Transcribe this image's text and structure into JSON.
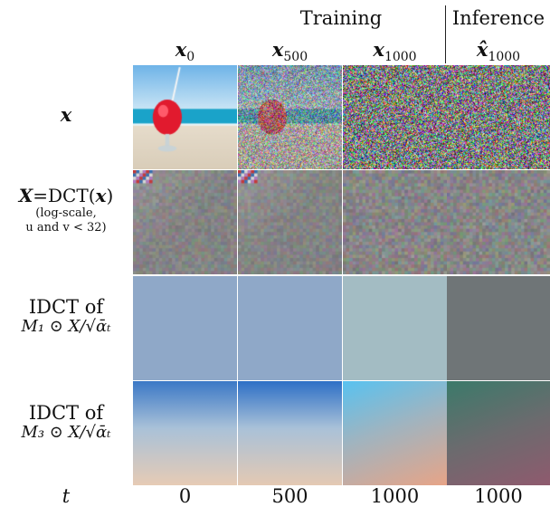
{
  "group_headers": {
    "training": "Training",
    "inference": "Inference"
  },
  "columns": [
    {
      "var": "x",
      "sub": "0",
      "hat": false
    },
    {
      "var": "x",
      "sub": "500",
      "hat": false
    },
    {
      "var": "x",
      "sub": "1000",
      "hat": false
    },
    {
      "var": "x̂",
      "sub": "1000",
      "hat": true
    }
  ],
  "rows": [
    {
      "label": "x",
      "note": ""
    },
    {
      "label": "X=DCT(x)",
      "note_line1": "(log-scale,",
      "note_line2": "u and v < 32)"
    },
    {
      "label_line1": "IDCT of",
      "label_line2": "M₁ ⊙ X/√ᾱₜ"
    },
    {
      "label_line1": "IDCT of",
      "label_line2": "M₃ ⊙ X/√ᾱₜ"
    }
  ],
  "t_axis": {
    "label": "t",
    "values": [
      "0",
      "500",
      "1000",
      "1000"
    ]
  },
  "colors": {
    "m1": [
      "#8fa8c8",
      "#8fa8c8",
      "#a3bcc3",
      "#6f7577"
    ],
    "m3_top": [
      "#3b78c6",
      "#2d6fc6",
      "#58c2f0",
      "#3b7a6a"
    ],
    "m3_bottom": [
      "#e6cbb5",
      "#e4c9b3",
      "#e7a487",
      "#8f5a6e"
    ]
  }
}
